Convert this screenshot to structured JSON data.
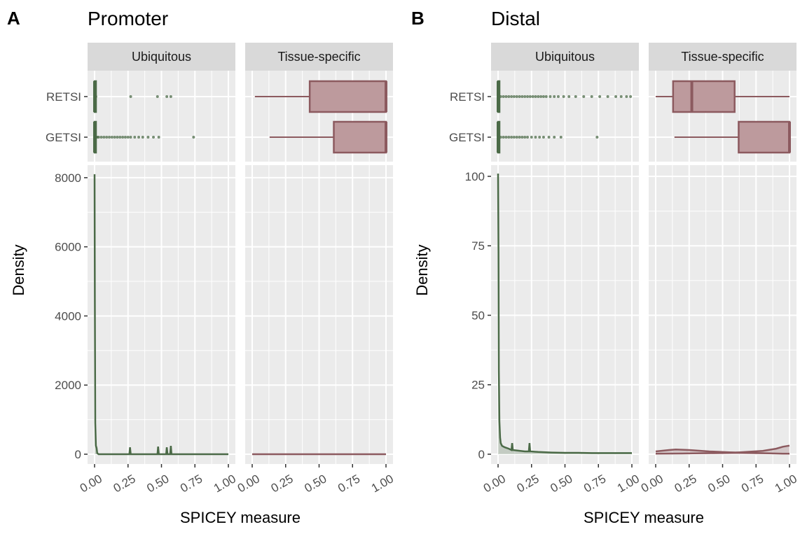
{
  "figure": {
    "panels": [
      {
        "tag": "A",
        "title": "Promoter"
      },
      {
        "tag": "B",
        "title": "Distal"
      }
    ]
  },
  "colors": {
    "ubiquitous": "#4b6a47",
    "tissue_specific": "#8c5a5f",
    "box_fill": "#bd9a9d",
    "panel_bg": "#ebebeb",
    "strip_bg": "#d9d9d9",
    "grid": "#ffffff"
  },
  "chart_data": [
    {
      "type": "boxplot+density",
      "panel": "A",
      "title": "Promoter",
      "facets": [
        "Ubiquitous",
        "Tissue-specific"
      ],
      "xlabel": "SPICEY measure",
      "ylabel": "Density",
      "x_ticks": [
        "0.00",
        "0.25",
        "0.50",
        "0.75",
        "1.00"
      ],
      "xlim": [
        0,
        1
      ],
      "box_categories": [
        "RETSI",
        "GETSI"
      ],
      "boxplots": {
        "Ubiquitous": {
          "RETSI": {
            "min": 0,
            "q1": 0,
            "median": 0,
            "q3": 0.003,
            "max": 0.007,
            "outliers": [
              0.01,
              0.27,
              0.47,
              0.54,
              0.57
            ]
          },
          "GETSI": {
            "min": 0,
            "q1": 0,
            "median": 0,
            "q3": 0.003,
            "max": 0.008,
            "outliers": [
              0.01,
              0.02,
              0.03,
              0.05,
              0.07,
              0.09,
              0.11,
              0.13,
              0.15,
              0.17,
              0.19,
              0.21,
              0.23,
              0.25,
              0.27,
              0.3,
              0.33,
              0.36,
              0.4,
              0.44,
              0.48,
              0.74
            ]
          }
        },
        "Tissue-specific": {
          "RETSI": {
            "min": 0.02,
            "q1": 0.43,
            "median": 1.0,
            "q3": 1.0,
            "max": 1.0,
            "outliers": []
          },
          "GETSI": {
            "min": 0.13,
            "q1": 0.61,
            "median": 1.0,
            "q3": 1.0,
            "max": 1.0,
            "outliers": []
          }
        }
      },
      "density_ylim": [
        0,
        8200
      ],
      "density_y_ticks": [
        "0",
        "2000",
        "4000",
        "6000",
        "8000"
      ],
      "density": {
        "Ubiquitous": {
          "x": [
            0,
            0.002,
            0.005,
            0.01,
            0.015,
            0.02,
            0.03,
            0.26,
            0.265,
            0.27,
            0.47,
            0.475,
            0.48,
            0.535,
            0.54,
            0.545,
            0.565,
            0.57,
            0.575,
            1.0
          ],
          "y": [
            8100,
            4500,
            900,
            250,
            180,
            30,
            0,
            0,
            200,
            0,
            0,
            220,
            0,
            0,
            200,
            0,
            0,
            240,
            0,
            0
          ]
        },
        "Tissue-specific": {
          "x": [
            0,
            0.5,
            1.0
          ],
          "y": [
            0,
            0,
            0
          ]
        }
      }
    },
    {
      "type": "boxplot+density",
      "panel": "B",
      "title": "Distal",
      "facets": [
        "Ubiquitous",
        "Tissue-specific"
      ],
      "xlabel": "SPICEY measure",
      "ylabel": "Density",
      "x_ticks": [
        "0.00",
        "0.25",
        "0.50",
        "0.75",
        "1.00"
      ],
      "xlim": [
        0,
        1
      ],
      "box_categories": [
        "RETSI",
        "GETSI"
      ],
      "boxplots": {
        "Ubiquitous": {
          "RETSI": {
            "min": 0,
            "q1": 0,
            "median": 0,
            "q3": 0.005,
            "max": 0.01,
            "outliers": [
              0.02,
              0.04,
              0.06,
              0.08,
              0.1,
              0.12,
              0.14,
              0.16,
              0.18,
              0.2,
              0.22,
              0.24,
              0.26,
              0.28,
              0.3,
              0.32,
              0.34,
              0.36,
              0.39,
              0.42,
              0.45,
              0.49,
              0.53,
              0.58,
              0.64,
              0.7,
              0.76,
              0.82,
              0.88,
              0.92,
              0.96,
              0.99
            ]
          },
          "GETSI": {
            "min": 0,
            "q1": 0,
            "median": 0,
            "q3": 0.005,
            "max": 0.01,
            "outliers": [
              0.02,
              0.04,
              0.06,
              0.08,
              0.1,
              0.12,
              0.14,
              0.16,
              0.18,
              0.2,
              0.22,
              0.25,
              0.28,
              0.31,
              0.34,
              0.38,
              0.42,
              0.47,
              0.74
            ]
          }
        },
        "Tissue-specific": {
          "RETSI": {
            "min": 0.0,
            "q1": 0.13,
            "median": 0.27,
            "q3": 0.59,
            "max": 1.0,
            "outliers": []
          },
          "GETSI": {
            "min": 0.14,
            "q1": 0.62,
            "median": 1.0,
            "q3": 1.0,
            "max": 1.0,
            "outliers": []
          }
        }
      },
      "density_ylim": [
        0,
        102
      ],
      "density_y_ticks": [
        "0",
        "25",
        "50",
        "75",
        "100"
      ],
      "density": {
        "Ubiquitous": {
          "x": [
            0,
            0.003,
            0.006,
            0.01,
            0.015,
            0.02,
            0.03,
            0.05,
            0.08,
            0.1,
            0.105,
            0.11,
            0.2,
            0.23,
            0.235,
            0.24,
            0.3,
            0.4,
            0.5,
            0.6,
            0.7,
            0.8,
            0.9,
            1.0
          ],
          "y": [
            101,
            73,
            30,
            12,
            6,
            4,
            3,
            2.5,
            2,
            1.5,
            4,
            1.5,
            1,
            1,
            4,
            1,
            0.8,
            0.6,
            0.5,
            0.5,
            0.4,
            0.4,
            0.4,
            0.4
          ]
        },
        "Tissue-specific": {
          "RETSI": {
            "x": [
              0,
              0.1,
              0.15,
              0.25,
              0.4,
              0.55,
              0.7,
              0.85,
              0.95,
              1.0
            ],
            "y": [
              1.0,
              1.5,
              1.7,
              1.5,
              1.0,
              0.7,
              0.5,
              0.3,
              0.2,
              0.2
            ]
          },
          "GETSI": {
            "x": [
              0,
              0.2,
              0.4,
              0.6,
              0.8,
              0.9,
              0.95,
              1.0
            ],
            "y": [
              0.2,
              0.25,
              0.4,
              0.6,
              1.2,
              2.0,
              2.7,
              3.1
            ]
          }
        }
      }
    }
  ]
}
